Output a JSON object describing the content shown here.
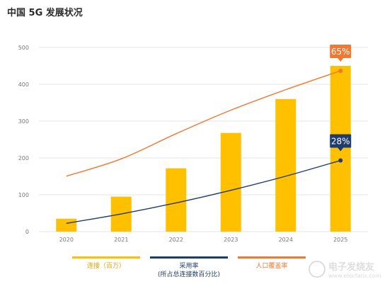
{
  "title": "中国 5G 发展状况",
  "colors": {
    "bars": "#FFC000",
    "adoption": "#1F3C6E",
    "coverage": "#F07830",
    "grid": "#E4E4E4",
    "tick": "#777777"
  },
  "chart_data": {
    "type": "bar",
    "categories": [
      "2020",
      "2021",
      "2022",
      "2023",
      "2024",
      "2025"
    ],
    "ylim": [
      0,
      500
    ],
    "yticks": [
      0,
      100,
      200,
      300,
      400,
      500
    ],
    "grid": true,
    "series": [
      {
        "name": "连接（百万）",
        "kind": "bar",
        "values": [
          35,
          95,
          172,
          268,
          360,
          450
        ]
      },
      {
        "name": "采用率（所占总连接数百分比）",
        "kind": "line",
        "values": [
          3,
          9,
          16,
          24,
          33,
          43
        ]
      },
      {
        "name": "人口覆盖率",
        "kind": "line",
        "values": [
          33,
          44,
          60,
          75,
          88,
          100
        ]
      }
    ],
    "annotations": [
      {
        "series": 2,
        "index": 5,
        "label": "65%"
      },
      {
        "series": 1,
        "index": 5,
        "label": "28%"
      }
    ],
    "legend_position": "bottom"
  },
  "legend": {
    "connections": "连接（百万）",
    "adoption_line1": "采用率",
    "adoption_line2": "(所占总连接数百分比)",
    "coverage": "人口覆盖率"
  },
  "watermark": {
    "main": "电子发烧友",
    "sub": "www.elecfans.com"
  }
}
